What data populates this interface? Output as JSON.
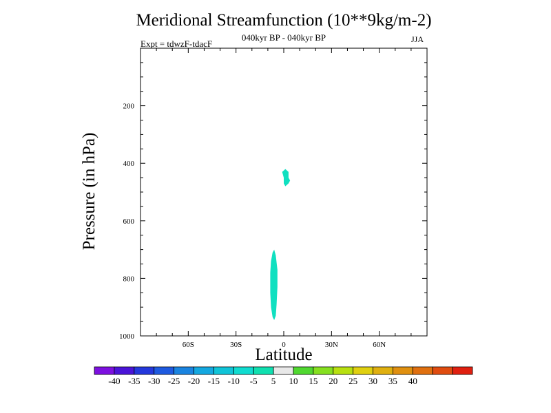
{
  "chart_data": {
    "type": "contour",
    "title": "Meridional Streamfunction (10**9kg/m-2)",
    "subtitle": "040kyr BP - 040kyr BP",
    "left_annotation": "Expt = tdwzF-tdacF",
    "right_annotation": "JJA",
    "xlabel": "Latitude",
    "ylabel": "Pressure (in hPa)",
    "xlim": [
      -90,
      90
    ],
    "ylim": [
      1000,
      0
    ],
    "x_ticks": [
      {
        "value": -60,
        "label": "60S"
      },
      {
        "value": -30,
        "label": "30S"
      },
      {
        "value": 0,
        "label": "0"
      },
      {
        "value": 30,
        "label": "30N"
      },
      {
        "value": 60,
        "label": "60N"
      }
    ],
    "y_ticks": [
      {
        "value": 200,
        "label": "200"
      },
      {
        "value": 400,
        "label": "400"
      },
      {
        "value": 600,
        "label": "600"
      },
      {
        "value": 800,
        "label": "800"
      },
      {
        "value": 1000,
        "label": "1000"
      }
    ],
    "filled_regions": [
      {
        "level": "-10 to -5",
        "color": "#10e0c0",
        "outline": [
          [
            1,
            420
          ],
          [
            3,
            430
          ],
          [
            3,
            450
          ],
          [
            4,
            460
          ],
          [
            3,
            470
          ],
          [
            1,
            480
          ],
          [
            0,
            470
          ],
          [
            0,
            450
          ],
          [
            -1,
            430
          ]
        ]
      },
      {
        "level": "-10 to -5",
        "color": "#10e0c0",
        "outline": [
          [
            -6,
            700
          ],
          [
            -5,
            720
          ],
          [
            -4,
            770
          ],
          [
            -4,
            830
          ],
          [
            -4.5,
            890
          ],
          [
            -5,
            930
          ],
          [
            -6,
            945
          ],
          [
            -7,
            935
          ],
          [
            -8,
            900
          ],
          [
            -8.5,
            850
          ],
          [
            -8.5,
            780
          ],
          [
            -8,
            740
          ],
          [
            -7,
            710
          ]
        ]
      }
    ],
    "colorbar": {
      "colors": [
        "#7d10e0",
        "#4a14d8",
        "#2438dc",
        "#1e5ae0",
        "#1a84e0",
        "#14a8e0",
        "#10c4d8",
        "#10dcd0",
        "#10e0b0",
        "#e8e8e8",
        "#50d830",
        "#86e020",
        "#b8e010",
        "#e0d010",
        "#e0b010",
        "#e09010",
        "#e07010",
        "#e04c10",
        "#e02010"
      ],
      "labels": [
        "-40",
        "-35",
        "-30",
        "-25",
        "-20",
        "-15",
        "-10",
        "-5",
        "5",
        "10",
        "15",
        "20",
        "25",
        "30",
        "35",
        "40"
      ]
    }
  }
}
